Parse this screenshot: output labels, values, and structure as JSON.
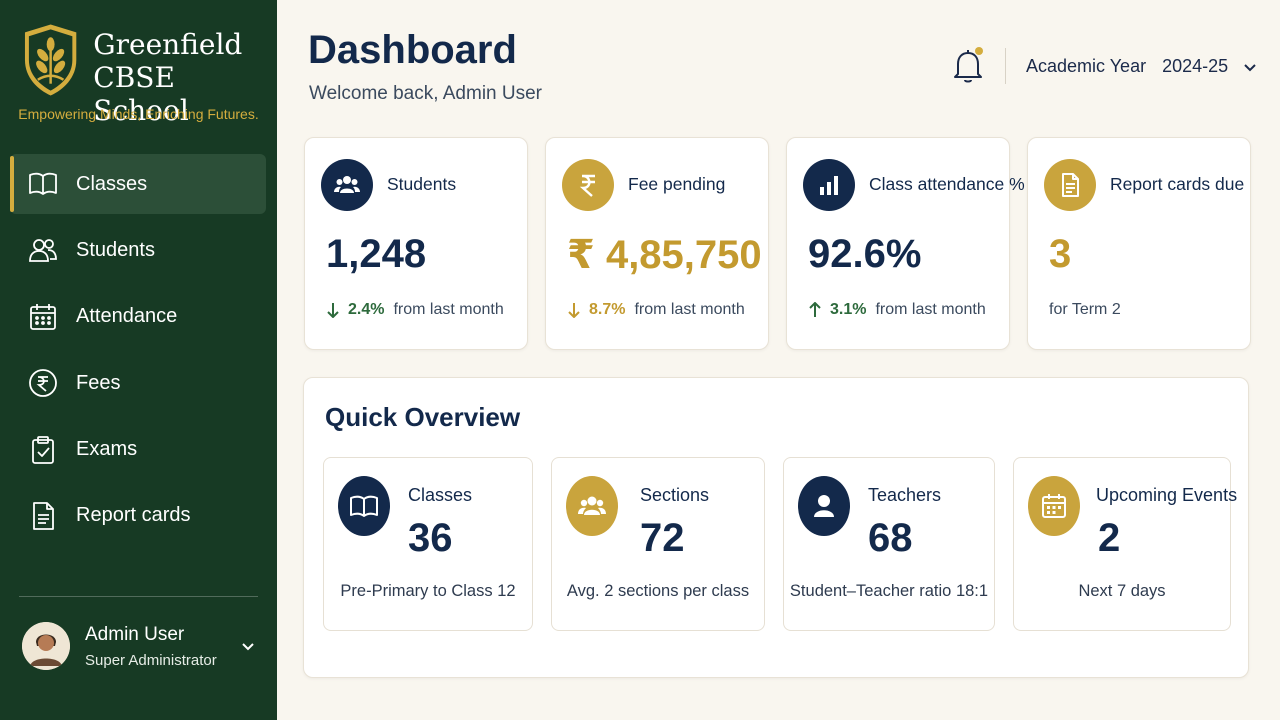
{
  "brand": {
    "name_line1": "Greenfield",
    "name_line2": "CBSE School",
    "tagline": "Empowering Minds, Enriching Futures."
  },
  "sidebar": {
    "items": [
      {
        "label": "Classes",
        "icon": "book-icon",
        "active": true
      },
      {
        "label": "Students",
        "icon": "users-icon",
        "active": false
      },
      {
        "label": "Attendance",
        "icon": "calendar-icon",
        "active": false
      },
      {
        "label": "Fees",
        "icon": "rupee-icon",
        "active": false
      },
      {
        "label": "Exams",
        "icon": "clipboard-check-icon",
        "active": false
      },
      {
        "label": "Report cards",
        "icon": "document-icon",
        "active": false
      }
    ]
  },
  "user": {
    "name": "Admin User",
    "role": "Super Administrator"
  },
  "header": {
    "title": "Dashboard",
    "welcome": "Welcome back, Admin User",
    "year_label": "Academic Year",
    "year_value": "2024-25",
    "notification_dot": true
  },
  "stats": [
    {
      "title": "Students",
      "value": "1,248",
      "change": "2.4%",
      "change_direction": "down",
      "change_text": "from last month",
      "icon": "users-icon"
    },
    {
      "title": "Fee pending",
      "value": "₹ 4,85,750",
      "change": "8.7%",
      "change_direction": "down",
      "change_text": "from last month",
      "icon": "rupee-icon"
    },
    {
      "title": "Class attendance %",
      "value": "92.6%",
      "change": "3.1%",
      "change_direction": "up",
      "change_text": "from last month",
      "icon": "bar-chart-icon"
    },
    {
      "title": "Report cards due",
      "value": "3",
      "change_text": "for Term 2",
      "icon": "document-icon"
    }
  ],
  "overview": {
    "title": "Quick Overview",
    "cards": [
      {
        "title": "Classes",
        "value": "36",
        "sub": "Pre-Primary to Class 12",
        "icon": "open-book-icon"
      },
      {
        "title": "Sections",
        "value": "72",
        "sub": "Avg. 2 sections per class",
        "icon": "group-icon"
      },
      {
        "title": "Teachers",
        "value": "68",
        "sub": "Student–Teacher ratio 18:1",
        "icon": "person-icon"
      },
      {
        "title": "Upcoming Events",
        "value": "2",
        "sub": "Next 7 days",
        "icon": "calendar-icon"
      }
    ]
  },
  "colors": {
    "sidebar": "#173a24",
    "sidebar_active": "#2c4f38",
    "gold": "#c9a43d",
    "navy": "#13294b",
    "green": "#2d6a3c",
    "background": "#f9f6ef"
  }
}
